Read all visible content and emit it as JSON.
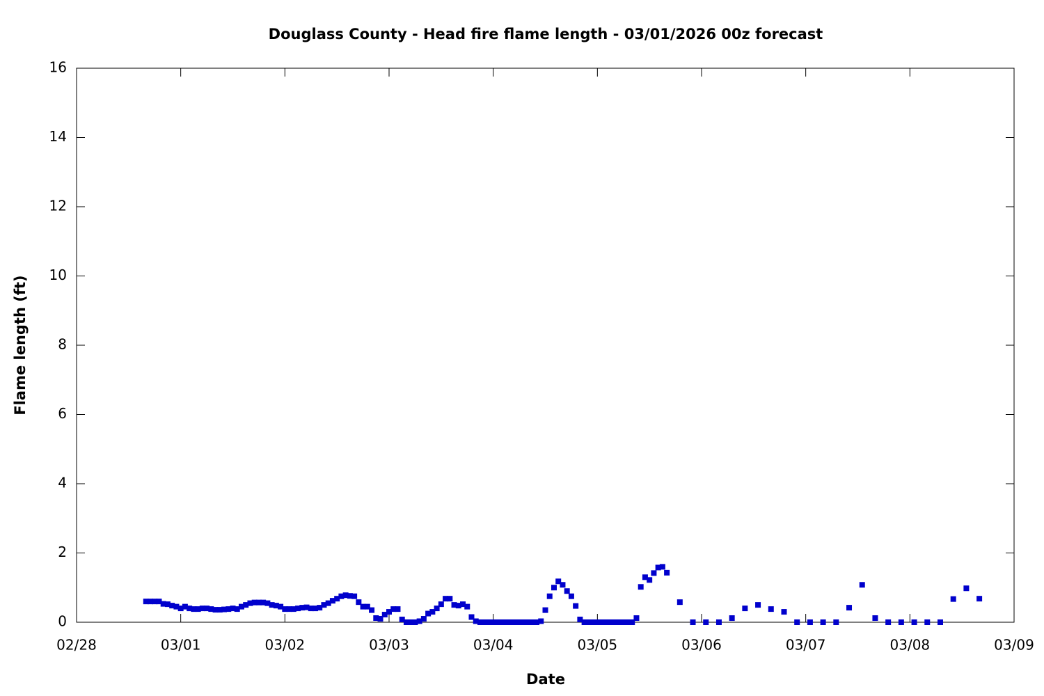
{
  "chart_data": {
    "type": "scatter",
    "title": "Douglass County - Head fire flame length - 03/01/2026 00z forecast",
    "x_label": "Date",
    "y_label": "Flame length (ft)",
    "color": "#0000cc",
    "x": [
      16,
      17,
      18,
      19,
      20,
      21,
      22,
      23,
      24,
      25,
      26,
      27,
      28,
      29,
      30,
      31,
      32,
      33,
      34,
      35,
      36,
      37,
      38,
      39,
      40,
      41,
      42,
      43,
      44,
      45,
      46,
      47,
      48,
      49,
      50,
      51,
      52,
      53,
      54,
      55,
      56,
      57,
      58,
      59,
      60,
      61,
      62,
      63,
      64,
      65,
      66,
      67,
      68,
      69,
      70,
      71,
      72,
      73,
      74,
      75,
      76,
      77,
      78,
      79,
      80,
      81,
      82,
      83,
      84,
      85,
      86,
      87,
      88,
      89,
      90,
      91,
      92,
      93,
      94,
      95,
      96,
      97,
      98,
      99,
      100,
      101,
      102,
      103,
      104,
      105,
      106,
      107,
      108,
      109,
      110,
      111,
      112,
      113,
      114,
      115,
      116,
      117,
      118,
      119,
      120,
      121,
      122,
      123,
      124,
      125,
      126,
      127,
      128,
      129,
      130,
      131,
      132,
      133,
      134,
      135,
      136,
      139,
      142,
      145,
      148,
      151,
      154,
      157,
      160,
      163,
      166,
      169,
      172,
      175,
      178,
      181,
      184,
      187,
      190,
      193,
      196,
      199,
      202,
      205,
      208
    ],
    "values": [
      0.6,
      0.6,
      0.6,
      0.6,
      0.53,
      0.52,
      0.48,
      0.45,
      0.4,
      0.45,
      0.4,
      0.38,
      0.38,
      0.4,
      0.4,
      0.38,
      0.36,
      0.36,
      0.37,
      0.38,
      0.4,
      0.38,
      0.45,
      0.5,
      0.55,
      0.57,
      0.57,
      0.57,
      0.55,
      0.5,
      0.48,
      0.45,
      0.38,
      0.38,
      0.38,
      0.4,
      0.42,
      0.43,
      0.4,
      0.4,
      0.42,
      0.5,
      0.55,
      0.62,
      0.68,
      0.75,
      0.78,
      0.76,
      0.75,
      0.58,
      0.45,
      0.45,
      0.35,
      0.12,
      0.1,
      0.22,
      0.3,
      0.38,
      0.38,
      0.08,
      0,
      0,
      0,
      0.03,
      0.1,
      0.25,
      0.3,
      0.4,
      0.52,
      0.68,
      0.68,
      0.5,
      0.48,
      0.52,
      0.45,
      0.15,
      0.03,
      0,
      0,
      0,
      0,
      0,
      0,
      0,
      0,
      0,
      0,
      0,
      0,
      0,
      0,
      0.03,
      0.35,
      0.75,
      1.0,
      1.18,
      1.08,
      0.9,
      0.75,
      0.47,
      0.08,
      0,
      0,
      0,
      0,
      0,
      0,
      0,
      0,
      0,
      0,
      0,
      0,
      0.12,
      1.02,
      1.3,
      1.22,
      1.42,
      1.58,
      1.6,
      1.43,
      0.58,
      0,
      0,
      0,
      0.12,
      0.4,
      0.5,
      0.38,
      0.3,
      0,
      0,
      0,
      0,
      0.42,
      1.08,
      0.12,
      0,
      0,
      0,
      0,
      0,
      0.67,
      0.98,
      0.68
    ],
    "xlim": [
      0,
      216
    ],
    "xticks": [
      {
        "value": 0,
        "label": "02/28"
      },
      {
        "value": 24,
        "label": "03/01"
      },
      {
        "value": 48,
        "label": "03/02"
      },
      {
        "value": 72,
        "label": "03/03"
      },
      {
        "value": 96,
        "label": "03/04"
      },
      {
        "value": 120,
        "label": "03/05"
      },
      {
        "value": 144,
        "label": "03/06"
      },
      {
        "value": 168,
        "label": "03/07"
      },
      {
        "value": 192,
        "label": "03/08"
      },
      {
        "value": 216,
        "label": "03/09"
      }
    ],
    "ylim": [
      0,
      16
    ],
    "yticks": [
      0,
      2,
      4,
      6,
      8,
      10,
      12,
      14,
      16
    ]
  }
}
